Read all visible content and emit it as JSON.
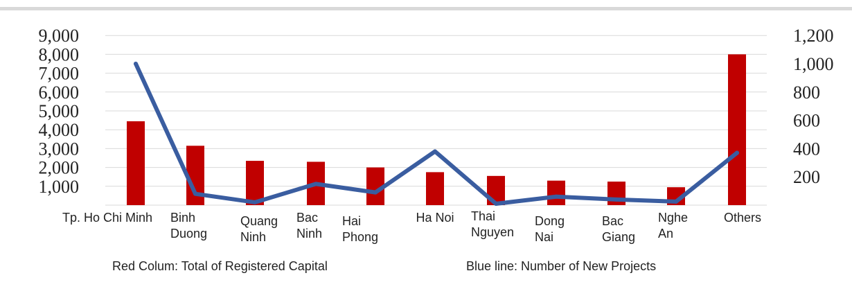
{
  "chart_data": {
    "type": "bar",
    "categories": [
      [
        "Tp. Ho Chi Minh"
      ],
      [
        "Binh",
        "Duong"
      ],
      [
        "Quang",
        "Ninh"
      ],
      [
        "Bac",
        "Ninh"
      ],
      [
        "Hai",
        "Phong"
      ],
      [
        "Ha Noi"
      ],
      [
        "Thai",
        "Nguyen"
      ],
      [
        "Dong",
        "Nai"
      ],
      [
        "Bac",
        "Giang"
      ],
      [
        "Nghe",
        "An"
      ],
      [
        "Others"
      ]
    ],
    "series": [
      {
        "type": "bar",
        "axis": "left",
        "color": "#c00000",
        "values": [
          4450,
          3150,
          2350,
          2300,
          2000,
          1750,
          1550,
          1300,
          1250,
          950,
          8000
        ]
      },
      {
        "type": "line",
        "axis": "right",
        "color": "#3a5da0",
        "values": [
          1000,
          80,
          20,
          150,
          90,
          380,
          10,
          60,
          40,
          25,
          370
        ]
      }
    ],
    "left_axis": {
      "ticks": [
        "1,000",
        "2,000",
        "3,000",
        "4,000",
        "5,000",
        "6,000",
        "7,000",
        "8,000",
        "9,000"
      ],
      "tick_values": [
        1000,
        2000,
        3000,
        4000,
        5000,
        6000,
        7000,
        8000,
        9000
      ],
      "range": [
        0,
        9000
      ]
    },
    "right_axis": {
      "ticks": [
        "200",
        "400",
        "600",
        "800",
        "1,000",
        "1,200"
      ],
      "tick_values": [
        200,
        400,
        600,
        800,
        1000,
        1200
      ],
      "range": [
        0,
        1200
      ]
    },
    "grid": true,
    "notes": {
      "red": "Red Colum: Total of Registered Capital",
      "blue": "Blue line: Number of New Projects"
    }
  }
}
